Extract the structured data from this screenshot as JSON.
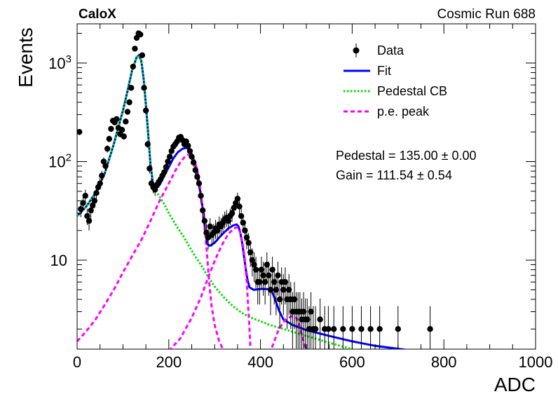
{
  "header": {
    "left": "CaloX",
    "right": "Cosmic Run 688"
  },
  "chart_data": {
    "type": "scatter",
    "xlabel": "ADC",
    "ylabel": "Events",
    "xlim": [
      0,
      1000
    ],
    "ylim": [
      1.25,
      2500
    ],
    "y_scale": "log",
    "x_ticks": [
      0,
      200,
      400,
      600,
      800,
      1000
    ],
    "y_ticks": [
      {
        "value": 10,
        "base": "10",
        "exp": ""
      },
      {
        "value": 100,
        "base": "10",
        "exp": "2"
      },
      {
        "value": 1000,
        "base": "10",
        "exp": "3"
      }
    ],
    "legend": [
      {
        "label": "Data",
        "style": "marker",
        "color": "#000000"
      },
      {
        "label": "Fit",
        "style": "solid",
        "color": "#0000ff"
      },
      {
        "label": "Pedestal CB",
        "style": "dotted",
        "color": "#00dd00"
      },
      {
        "label": "p.e. peak",
        "style": "dashed",
        "color": "#ff00ff"
      }
    ],
    "annotations": [
      {
        "text": "Pedestal = 135.00 ± 0.00"
      },
      {
        "text": "Gain = 111.54 ± 0.54"
      }
    ],
    "series": [
      {
        "name": "Data",
        "type": "scatter",
        "color": "#000000",
        "points": [
          [
            5,
            200
          ],
          [
            8,
            33
          ],
          [
            13,
            38
          ],
          [
            18,
            45
          ],
          [
            22,
            28
          ],
          [
            26,
            25
          ],
          [
            30,
            32
          ],
          [
            34,
            36
          ],
          [
            38,
            40
          ],
          [
            42,
            48
          ],
          [
            46,
            55
          ],
          [
            50,
            60
          ],
          [
            54,
            72
          ],
          [
            58,
            100
          ],
          [
            62,
            90
          ],
          [
            66,
            135
          ],
          [
            70,
            170
          ],
          [
            74,
            215
          ],
          [
            78,
            260
          ],
          [
            82,
            250
          ],
          [
            86,
            270
          ],
          [
            90,
            220
          ],
          [
            94,
            190
          ],
          [
            98,
            210
          ],
          [
            102,
            180
          ],
          [
            106,
            255
          ],
          [
            110,
            320
          ],
          [
            114,
            400
          ],
          [
            118,
            560
          ],
          [
            122,
            920
          ],
          [
            126,
            1400
          ],
          [
            130,
            1800
          ],
          [
            134,
            2000
          ],
          [
            138,
            1950
          ],
          [
            142,
            1200
          ],
          [
            146,
            560
          ],
          [
            150,
            330
          ],
          [
            154,
            150
          ],
          [
            158,
            85
          ],
          [
            162,
            60
          ],
          [
            166,
            55
          ],
          [
            170,
            52
          ],
          [
            174,
            58
          ],
          [
            178,
            62
          ],
          [
            182,
            66
          ],
          [
            186,
            72
          ],
          [
            190,
            78
          ],
          [
            194,
            88
          ],
          [
            198,
            100
          ],
          [
            202,
            112
          ],
          [
            206,
            128
          ],
          [
            210,
            142
          ],
          [
            214,
            150
          ],
          [
            218,
            160
          ],
          [
            222,
            175
          ],
          [
            226,
            178
          ],
          [
            230,
            165
          ],
          [
            234,
            150
          ],
          [
            238,
            160
          ],
          [
            242,
            145
          ],
          [
            246,
            128
          ],
          [
            250,
            112
          ],
          [
            254,
            98
          ],
          [
            258,
            82
          ],
          [
            262,
            70
          ],
          [
            266,
            60
          ],
          [
            270,
            45
          ],
          [
            274,
            32
          ],
          [
            278,
            25
          ],
          [
            282,
            19
          ],
          [
            286,
            17
          ],
          [
            290,
            22
          ],
          [
            294,
            18
          ],
          [
            298,
            19
          ],
          [
            302,
            21
          ],
          [
            306,
            20
          ],
          [
            310,
            23
          ],
          [
            314,
            22
          ],
          [
            318,
            24
          ],
          [
            322,
            26
          ],
          [
            326,
            27
          ],
          [
            330,
            25
          ],
          [
            334,
            28
          ],
          [
            338,
            30
          ],
          [
            342,
            34
          ],
          [
            346,
            38
          ],
          [
            350,
            42
          ],
          [
            354,
            35
          ],
          [
            358,
            28
          ],
          [
            362,
            24
          ],
          [
            366,
            20
          ],
          [
            370,
            17
          ],
          [
            374,
            15
          ],
          [
            378,
            12
          ],
          [
            382,
            10
          ],
          [
            386,
            9
          ],
          [
            390,
            8
          ],
          [
            394,
            6
          ],
          [
            398,
            6
          ],
          [
            402,
            8
          ],
          [
            406,
            7
          ],
          [
            410,
            6
          ],
          [
            414,
            9
          ],
          [
            418,
            7
          ],
          [
            422,
            5
          ],
          [
            426,
            8
          ],
          [
            430,
            6
          ],
          [
            434,
            5
          ],
          [
            438,
            7
          ],
          [
            442,
            4
          ],
          [
            446,
            6
          ],
          [
            450,
            5
          ],
          [
            454,
            6
          ],
          [
            458,
            4
          ],
          [
            462,
            5
          ],
          [
            466,
            4
          ],
          [
            470,
            3
          ],
          [
            474,
            4
          ],
          [
            478,
            3
          ],
          [
            482,
            3
          ],
          [
            486,
            3
          ],
          [
            490,
            2.5
          ],
          [
            494,
            3
          ],
          [
            498,
            2.5
          ],
          [
            502,
            2.5
          ],
          [
            506,
            2
          ],
          [
            510,
            3
          ],
          [
            515,
            2
          ],
          [
            520,
            2
          ],
          [
            530,
            2.5
          ],
          [
            540,
            2
          ],
          [
            548,
            2
          ],
          [
            560,
            2
          ],
          [
            580,
            2
          ],
          [
            600,
            2
          ],
          [
            620,
            2
          ],
          [
            640,
            2
          ],
          [
            660,
            2
          ],
          [
            700,
            2
          ],
          [
            770,
            2
          ]
        ]
      },
      {
        "name": "Fit",
        "type": "line",
        "color": "#0000ff",
        "style": "solid",
        "points": [
          [
            0,
            28
          ],
          [
            20,
            35
          ],
          [
            40,
            48
          ],
          [
            60,
            75
          ],
          [
            80,
            150
          ],
          [
            100,
            330
          ],
          [
            110,
            520
          ],
          [
            120,
            850
          ],
          [
            130,
            1150
          ],
          [
            135,
            1200
          ],
          [
            140,
            1050
          ],
          [
            145,
            700
          ],
          [
            150,
            380
          ],
          [
            155,
            190
          ],
          [
            160,
            95
          ],
          [
            165,
            62
          ],
          [
            170,
            52
          ],
          [
            180,
            58
          ],
          [
            190,
            72
          ],
          [
            200,
            88
          ],
          [
            210,
            108
          ],
          [
            220,
            125
          ],
          [
            230,
            135
          ],
          [
            238,
            138
          ],
          [
            245,
            132
          ],
          [
            252,
            115
          ],
          [
            258,
            92
          ],
          [
            264,
            66
          ],
          [
            270,
            44
          ],
          [
            276,
            28
          ],
          [
            280,
            19
          ],
          [
            284,
            14.5
          ],
          [
            290,
            14
          ],
          [
            300,
            15
          ],
          [
            310,
            17
          ],
          [
            320,
            19
          ],
          [
            330,
            21
          ],
          [
            340,
            22.5
          ],
          [
            348,
            23
          ],
          [
            352,
            22
          ],
          [
            356,
            19
          ],
          [
            360,
            15
          ],
          [
            364,
            11
          ],
          [
            368,
            8
          ],
          [
            372,
            6.2
          ],
          [
            376,
            5.3
          ],
          [
            385,
            5.0
          ],
          [
            400,
            5.1
          ],
          [
            415,
            5.1
          ],
          [
            425,
            4.8
          ],
          [
            432,
            4.0
          ],
          [
            440,
            3.1
          ],
          [
            450,
            2.5
          ],
          [
            470,
            2.2
          ],
          [
            500,
            1.95
          ],
          [
            550,
            1.7
          ],
          [
            600,
            1.5
          ],
          [
            650,
            1.35
          ],
          [
            700,
            1.26
          ],
          [
            760,
            1.16
          ]
        ]
      },
      {
        "name": "Pedestal CB",
        "type": "line",
        "color": "#00dd00",
        "style": "dotted",
        "points": [
          [
            0,
            28
          ],
          [
            20,
            35
          ],
          [
            40,
            48
          ],
          [
            60,
            75
          ],
          [
            80,
            150
          ],
          [
            100,
            330
          ],
          [
            110,
            520
          ],
          [
            120,
            850
          ],
          [
            130,
            1150
          ],
          [
            135,
            1200
          ],
          [
            140,
            1050
          ],
          [
            145,
            700
          ],
          [
            150,
            380
          ],
          [
            155,
            190
          ],
          [
            160,
            95
          ],
          [
            165,
            62
          ],
          [
            170,
            52
          ],
          [
            180,
            44
          ],
          [
            190,
            37
          ],
          [
            200,
            30
          ],
          [
            210,
            25
          ],
          [
            220,
            21
          ],
          [
            230,
            18
          ],
          [
            240,
            15
          ],
          [
            250,
            12.5
          ],
          [
            260,
            10.5
          ],
          [
            270,
            9
          ],
          [
            280,
            7.5
          ],
          [
            290,
            6.3
          ],
          [
            300,
            5.4
          ],
          [
            320,
            4.2
          ],
          [
            340,
            3.4
          ],
          [
            360,
            2.9
          ],
          [
            380,
            2.6
          ],
          [
            400,
            2.4
          ],
          [
            420,
            2.2
          ],
          [
            450,
            2.0
          ],
          [
            500,
            1.7
          ],
          [
            550,
            1.45
          ],
          [
            600,
            1.25
          ],
          [
            650,
            1.1
          ]
        ]
      },
      {
        "name": "p.e. peak",
        "type": "line",
        "color": "#ff00ff",
        "style": "dashed",
        "points": [
          [
            0,
            1.5
          ],
          [
            20,
            1.9
          ],
          [
            40,
            2.5
          ],
          [
            60,
            3.5
          ],
          [
            80,
            5
          ],
          [
            100,
            7.5
          ],
          [
            120,
            11
          ],
          [
            140,
            16
          ],
          [
            160,
            25
          ],
          [
            180,
            40
          ],
          [
            200,
            60
          ],
          [
            215,
            82
          ],
          [
            225,
            98
          ],
          [
            235,
            112
          ],
          [
            243,
            118
          ],
          [
            250,
            114
          ],
          [
            257,
            100
          ],
          [
            263,
            78
          ],
          [
            268,
            56
          ],
          [
            273,
            37
          ],
          [
            278,
            22
          ],
          [
            283,
            12
          ],
          [
            288,
            6
          ],
          [
            293,
            3.5
          ],
          [
            300,
            2.2
          ],
          [
            310,
            1.5
          ],
          [
            320,
            1.2
          ]
        ]
      },
      {
        "name": "p.e. peak 2",
        "type": "line",
        "color": "#ff00ff",
        "style": "dashed",
        "points": [
          [
            200,
            1.2
          ],
          [
            225,
            1.6
          ],
          [
            250,
            2.6
          ],
          [
            270,
            4.2
          ],
          [
            285,
            6.5
          ],
          [
            300,
            9.8
          ],
          [
            315,
            14
          ],
          [
            330,
            18.5
          ],
          [
            342,
            21
          ],
          [
            350,
            21.5
          ],
          [
            356,
            19
          ],
          [
            362,
            14
          ],
          [
            366,
            10
          ],
          [
            370,
            6
          ],
          [
            373,
            3.5
          ],
          [
            376,
            2
          ],
          [
            378,
            1.3
          ]
        ]
      },
      {
        "name": "p.e. peak 3",
        "type": "line",
        "color": "#ff00ff",
        "style": "dashed",
        "points": [
          [
            425,
            1.3
          ],
          [
            440,
            2.0
          ],
          [
            455,
            2.5
          ],
          [
            468,
            2.7
          ],
          [
            478,
            2.6
          ],
          [
            486,
            2.1
          ],
          [
            492,
            1.6
          ],
          [
            498,
            1.25
          ]
        ]
      }
    ]
  }
}
